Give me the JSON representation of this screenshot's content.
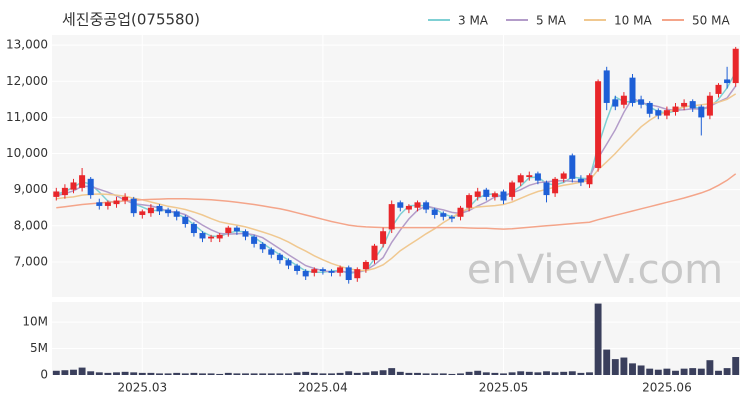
{
  "chart_data": [
    {
      "type": "candlestick",
      "title": "세진중공업(075580)",
      "watermark": "enVievV.com",
      "legend": "top-right",
      "grid": true,
      "up_color": "#e8262a",
      "down_color": "#1e5fd6",
      "ylim": [
        6030,
        13280
      ],
      "yticks": [
        {
          "value": 7000,
          "label": "7,000"
        },
        {
          "value": 8000,
          "label": "8,000"
        },
        {
          "value": 9000,
          "label": "9,000"
        },
        {
          "value": 10000,
          "label": "10,000"
        },
        {
          "value": 11000,
          "label": "11,000"
        },
        {
          "value": 12000,
          "label": "12,000"
        },
        {
          "value": 13000,
          "label": "13,000"
        }
      ],
      "open": [
        8800,
        8850,
        9000,
        9050,
        9300,
        8650,
        8550,
        8600,
        8700,
        8750,
        8300,
        8350,
        8550,
        8450,
        8400,
        8250,
        8050,
        7800,
        7650,
        7650,
        7800,
        7950,
        7850,
        7700,
        7500,
        7350,
        7200,
        7050,
        6900,
        6750,
        6700,
        6800,
        6750,
        6700,
        6850,
        6550,
        6800,
        7050,
        7500,
        7900,
        8650,
        8450,
        8500,
        8650,
        8450,
        8350,
        8250,
        8250,
        8500,
        8800,
        9000,
        8800,
        8950,
        8800,
        9200,
        9350,
        9450,
        9200,
        8900,
        9300,
        9950,
        9300,
        9150,
        9600,
        12300,
        11500,
        11350,
        12100,
        11500,
        11400,
        11200,
        11050,
        11150,
        11300,
        11450,
        11300,
        11050,
        11650,
        12050,
        11950
      ],
      "high": [
        9050,
        9150,
        9300,
        9600,
        9350,
        8750,
        8700,
        8800,
        8900,
        8800,
        8450,
        8600,
        8600,
        8500,
        8450,
        8300,
        8100,
        7850,
        7750,
        7800,
        8000,
        8000,
        7900,
        7750,
        7550,
        7400,
        7250,
        7100,
        6950,
        6800,
        6850,
        6850,
        6800,
        6900,
        6900,
        6850,
        7050,
        7500,
        7950,
        8700,
        8700,
        8600,
        8700,
        8700,
        8500,
        8400,
        8300,
        8550,
        8900,
        9050,
        9050,
        8950,
        9000,
        9250,
        9450,
        9500,
        9500,
        9250,
        9350,
        9500,
        10000,
        9400,
        9450,
        12050,
        12400,
        11600,
        11700,
        12200,
        11600,
        11450,
        11250,
        11300,
        11400,
        11500,
        11500,
        11350,
        11700,
        11950,
        12400,
        12950
      ],
      "low": [
        8700,
        8750,
        8900,
        8950,
        8750,
        8450,
        8450,
        8500,
        8600,
        8250,
        8200,
        8250,
        8300,
        8250,
        8150,
        7950,
        7700,
        7550,
        7550,
        7550,
        7700,
        7750,
        7600,
        7400,
        7250,
        7100,
        6950,
        6800,
        6650,
        6500,
        6600,
        6650,
        6600,
        6600,
        6400,
        6450,
        6700,
        6950,
        7400,
        7800,
        8400,
        8350,
        8400,
        8350,
        8200,
        8150,
        8100,
        8150,
        8400,
        8700,
        8700,
        8700,
        8600,
        8700,
        9100,
        9250,
        9150,
        8650,
        8800,
        9200,
        9200,
        9100,
        9050,
        9500,
        11200,
        11200,
        11250,
        11300,
        11250,
        11000,
        10950,
        10950,
        11050,
        11200,
        11150,
        10500,
        10950,
        11550,
        11800,
        11850
      ],
      "close": [
        8950,
        9050,
        9200,
        9400,
        8850,
        8550,
        8650,
        8700,
        8800,
        8350,
        8400,
        8500,
        8400,
        8350,
        8250,
        8050,
        7800,
        7650,
        7700,
        7750,
        7950,
        7850,
        7700,
        7500,
        7350,
        7200,
        7050,
        6900,
        6750,
        6600,
        6800,
        6750,
        6700,
        6850,
        6500,
        6800,
        7000,
        7450,
        7850,
        8600,
        8500,
        8550,
        8650,
        8450,
        8300,
        8250,
        8200,
        8500,
        8850,
        8950,
        8800,
        8900,
        8700,
        9200,
        9400,
        9400,
        9250,
        8850,
        9300,
        9450,
        9300,
        9200,
        9400,
        12000,
        11400,
        11300,
        11600,
        11400,
        11350,
        11100,
        11050,
        11200,
        11300,
        11400,
        11250,
        11000,
        11600,
        11900,
        11950,
        12900
      ],
      "series": [
        {
          "name": "3 MA",
          "color": "#7fd0d4",
          "values": [
            8867,
            8950,
            9067,
            9217,
            9150,
            8933,
            8683,
            8633,
            8717,
            8617,
            8517,
            8417,
            8433,
            8417,
            8333,
            8217,
            8033,
            7833,
            7717,
            7700,
            7800,
            7850,
            7833,
            7683,
            7517,
            7350,
            7200,
            7050,
            6900,
            6750,
            6717,
            6717,
            6750,
            6767,
            6683,
            6717,
            6767,
            7083,
            7433,
            7967,
            8317,
            8550,
            8567,
            8550,
            8467,
            8333,
            8250,
            8317,
            8517,
            8767,
            8867,
            8883,
            8800,
            8933,
            9100,
            9333,
            9350,
            9167,
            9133,
            9200,
            9350,
            9317,
            9300,
            10200,
            10933,
            11567,
            11433,
            11433,
            11450,
            11283,
            11167,
            11117,
            11183,
            11300,
            11317,
            11217,
            11283,
            11500,
            11817,
            12250
          ]
        },
        {
          "name": "5 MA",
          "color": "#b39cc9",
          "values": [
            8830,
            8890,
            8970,
            9090,
            9090,
            9010,
            8930,
            8830,
            8710,
            8610,
            8580,
            8550,
            8490,
            8400,
            8380,
            8310,
            8170,
            8020,
            7890,
            7790,
            7770,
            7780,
            7790,
            7750,
            7670,
            7520,
            7360,
            7200,
            7050,
            6900,
            6820,
            6760,
            6720,
            6740,
            6720,
            6720,
            6770,
            6920,
            7120,
            7540,
            7880,
            8190,
            8430,
            8550,
            8490,
            8440,
            8370,
            8340,
            8420,
            8550,
            8660,
            8800,
            8840,
            8910,
            9000,
            9120,
            9190,
            9220,
            9240,
            9250,
            9230,
            9220,
            9330,
            9870,
            10260,
            10660,
            11140,
            11540,
            11410,
            11350,
            11300,
            11220,
            11200,
            11210,
            11240,
            11230,
            11310,
            11430,
            11540,
            11870
          ]
        },
        {
          "name": "10 MA",
          "color": "#f0c890",
          "values": [
            8750,
            8780,
            8800,
            8850,
            8870,
            8880,
            8870,
            8850,
            8820,
            8760,
            8720,
            8660,
            8600,
            8540,
            8500,
            8450,
            8380,
            8300,
            8200,
            8110,
            8060,
            8020,
            7970,
            7900,
            7830,
            7750,
            7660,
            7550,
            7420,
            7300,
            7170,
            7060,
            6960,
            6880,
            6810,
            6770,
            6760,
            6820,
            6920,
            7100,
            7310,
            7470,
            7620,
            7780,
            7920,
            8090,
            8230,
            8380,
            8480,
            8520,
            8540,
            8560,
            8590,
            8660,
            8760,
            8860,
            8950,
            9010,
            9070,
            9120,
            9160,
            9210,
            9250,
            9550,
            9770,
            10000,
            10260,
            10500,
            10740,
            10920,
            11070,
            11150,
            11220,
            11290,
            11320,
            11350,
            11380,
            11420,
            11500,
            11650
          ]
        },
        {
          "name": "50 MA",
          "color": "#f4a58a",
          "values": [
            8500,
            8530,
            8560,
            8590,
            8610,
            8630,
            8650,
            8670,
            8690,
            8710,
            8720,
            8730,
            8740,
            8750,
            8750,
            8750,
            8740,
            8730,
            8720,
            8700,
            8680,
            8650,
            8620,
            8590,
            8550,
            8510,
            8470,
            8420,
            8360,
            8300,
            8240,
            8180,
            8120,
            8070,
            8020,
            7990,
            7970,
            7960,
            7950,
            7950,
            7950,
            7950,
            7950,
            7950,
            7950,
            7950,
            7950,
            7950,
            7940,
            7930,
            7930,
            7920,
            7910,
            7920,
            7940,
            7960,
            7980,
            8000,
            8020,
            8040,
            8060,
            8080,
            8100,
            8170,
            8230,
            8290,
            8350,
            8410,
            8470,
            8530,
            8590,
            8650,
            8710,
            8770,
            8840,
            8910,
            9000,
            9120,
            9260,
            9440
          ]
        }
      ]
    },
    {
      "type": "bar",
      "color": "#3a3f5c",
      "grid": true,
      "ylim": [
        0,
        13800000
      ],
      "yticks": [
        0,
        {
          "value": 5000000,
          "label": "5M"
        },
        {
          "value": 10000000,
          "label": "10M"
        }
      ],
      "categories": [
        null,
        null,
        null,
        null,
        null,
        null,
        null,
        null,
        null,
        null,
        "2025.03",
        null,
        null,
        null,
        null,
        null,
        null,
        null,
        null,
        null,
        null,
        null,
        null,
        null,
        null,
        null,
        null,
        null,
        null,
        null,
        null,
        "2025.04",
        null,
        null,
        null,
        null,
        null,
        null,
        null,
        null,
        null,
        null,
        null,
        null,
        null,
        null,
        null,
        null,
        null,
        null,
        null,
        null,
        "2025.05",
        null,
        null,
        null,
        null,
        null,
        null,
        null,
        null,
        null,
        null,
        null,
        null,
        null,
        null,
        null,
        null,
        null,
        null,
        "2025.06",
        null,
        null,
        null,
        null,
        null,
        null,
        null,
        null
      ],
      "values": [
        800000,
        900000,
        1000000,
        1400000,
        700000,
        500000,
        400000,
        500000,
        600000,
        500000,
        400000,
        400000,
        300000,
        300000,
        400000,
        300000,
        400000,
        300000,
        300000,
        200000,
        400000,
        300000,
        300000,
        300000,
        300000,
        300000,
        300000,
        300000,
        500000,
        600000,
        400000,
        300000,
        300000,
        400000,
        700000,
        400000,
        500000,
        700000,
        900000,
        1300000,
        600000,
        400000,
        400000,
        300000,
        300000,
        300000,
        200000,
        300000,
        600000,
        800000,
        500000,
        400000,
        300000,
        500000,
        700000,
        600000,
        500000,
        700000,
        500000,
        600000,
        700000,
        400000,
        500000,
        13500000,
        4800000,
        3000000,
        3300000,
        2200000,
        1800000,
        1200000,
        1000000,
        1200000,
        800000,
        1200000,
        1300000,
        1200000,
        2800000,
        800000,
        1300000,
        3400000
      ]
    }
  ]
}
